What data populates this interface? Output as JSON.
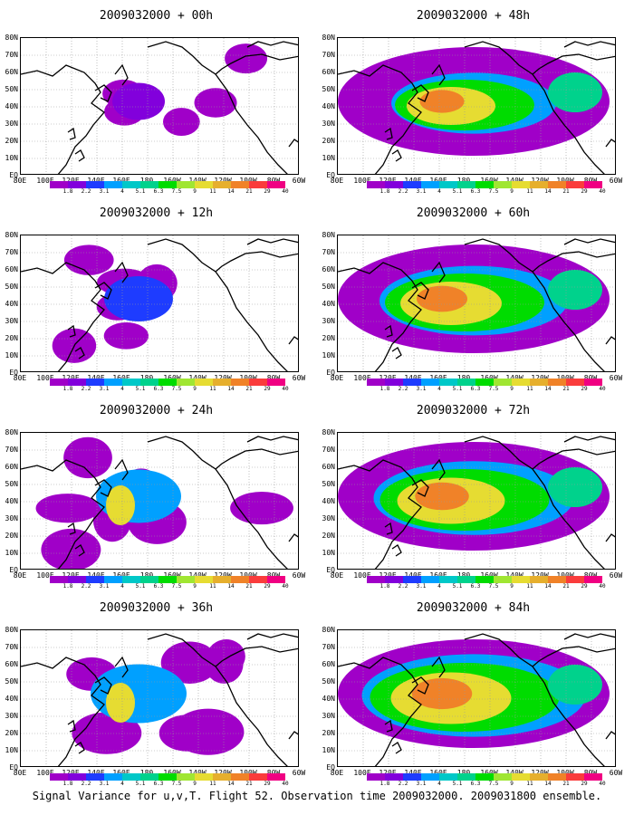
{
  "figure": {
    "caption": "Signal Variance for u,v,T. Flight 52. Observation time 2009032000. 2009031800 ensemble.",
    "x_ticks": [
      "80E",
      "100E",
      "120E",
      "140E",
      "160E",
      "180",
      "160W",
      "140W",
      "120W",
      "100W",
      "80W",
      "60W"
    ],
    "y_ticks": [
      "80N",
      "70N",
      "60N",
      "50N",
      "40N",
      "30N",
      "20N",
      "10N",
      "EQ"
    ],
    "colorbar": {
      "labels": [
        "1.8",
        "2.2",
        "3.1",
        "4",
        "5.1",
        "6.3",
        "7.5",
        "9",
        "11",
        "14",
        "21",
        "29",
        "40"
      ],
      "colors": [
        "#a000c8",
        "#8200dc",
        "#1e3cff",
        "#00a0ff",
        "#00c8c8",
        "#00d28c",
        "#00dc00",
        "#a0e632",
        "#e6dc32",
        "#e6af2d",
        "#f08228",
        "#fa3c3c",
        "#f00082"
      ]
    },
    "panels": [
      {
        "title": "2009032000 + 00h",
        "intensity": 0.15
      },
      {
        "title": "2009032000 + 48h",
        "intensity": 0.7
      },
      {
        "title": "2009032000 + 12h",
        "intensity": 0.3
      },
      {
        "title": "2009032000 + 60h",
        "intensity": 0.8
      },
      {
        "title": "2009032000 + 24h",
        "intensity": 0.45
      },
      {
        "title": "2009032000 + 72h",
        "intensity": 0.85
      },
      {
        "title": "2009032000 + 36h",
        "intensity": 0.55
      },
      {
        "title": "2009032000 + 84h",
        "intensity": 0.95
      }
    ]
  }
}
